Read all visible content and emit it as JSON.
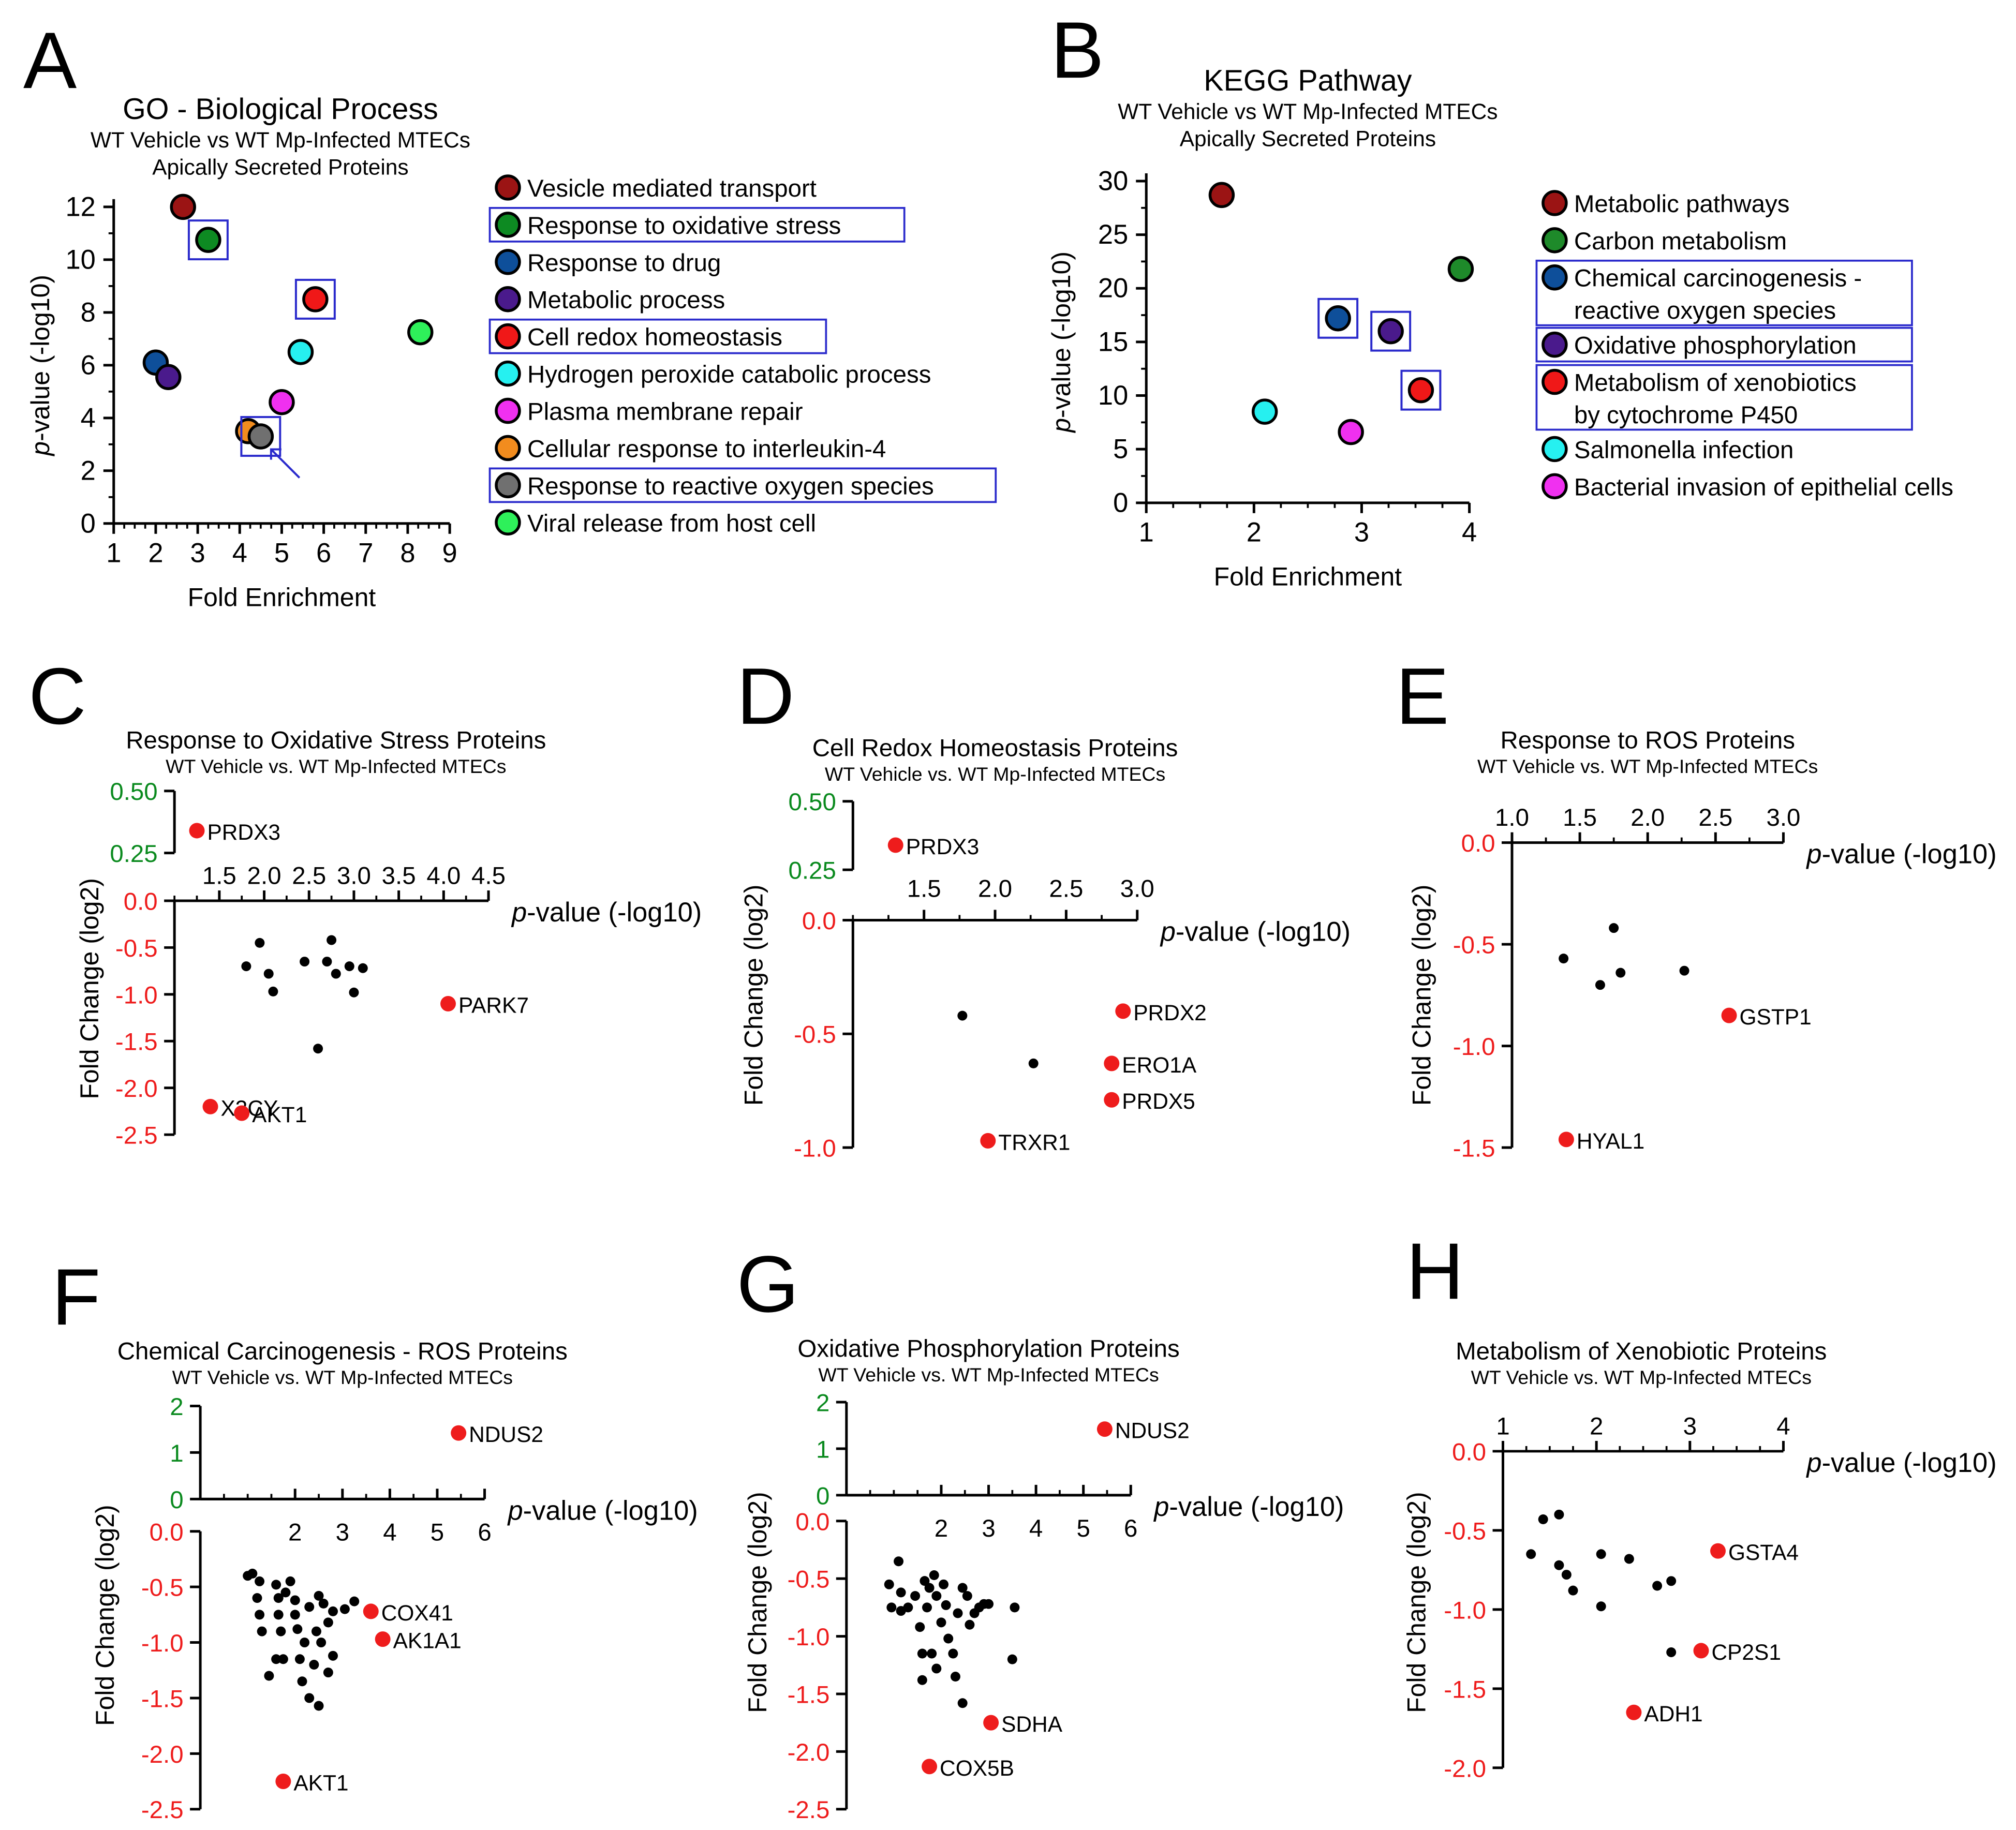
{
  "colors": {
    "vesicle": "#9b1414",
    "oxidative_stress": "#0d8a22",
    "drug": "#0e4f9a",
    "metabolic_process": "#4a1a8c",
    "redox": "#f01818",
    "h2o2": "#26f0f0",
    "membrane": "#f030f0",
    "il4": "#f28c1e",
    "ros": "#707070",
    "viral": "#2ef05a",
    "carbon": "#1e8a2a",
    "highlight_box": "#2b2bcc",
    "red_point": "#ee1c1c",
    "black_point": "#000000",
    "green_axis": "#0a8a1e",
    "red_axis": "#ee1c1c"
  },
  "chart_data": [
    {
      "id": "A",
      "type": "scatter",
      "panel_label": "A",
      "title": "GO - Biological Process",
      "subtitles": [
        "WT Vehicle vs WT Mp-Infected MTECs",
        "Apically Secreted Proteins"
      ],
      "xlabel": "Fold Enrichment",
      "ylabel_prefix": "p",
      "ylabel_suffix": "-value (-log10)",
      "xlim": [
        1,
        9
      ],
      "ylim": [
        0,
        12
      ],
      "xticks": [
        "1",
        "2",
        "3",
        "4",
        "5",
        "6",
        "7",
        "8",
        "9"
      ],
      "yticks": [
        "0",
        "2",
        "4",
        "6",
        "8",
        "10",
        "12"
      ],
      "arrow_target": "Response to reactive oxygen species",
      "series": [
        {
          "name": "Vesicle mediated transport",
          "color": "vesicle",
          "x": 2.65,
          "y": 12.0,
          "highlight": false
        },
        {
          "name": "Response to oxidative stress",
          "color": "oxidative_stress",
          "x": 3.25,
          "y": 10.75,
          "highlight": true
        },
        {
          "name": "Response to drug",
          "color": "drug",
          "x": 2.0,
          "y": 6.1,
          "highlight": false
        },
        {
          "name": "Metabolic process",
          "color": "metabolic_process",
          "x": 2.3,
          "y": 5.55,
          "highlight": false
        },
        {
          "name": "Cell redox homeostasis",
          "color": "redox",
          "x": 5.8,
          "y": 8.5,
          "highlight": true
        },
        {
          "name": "Hydrogen peroxide catabolic process",
          "color": "h2o2",
          "x": 5.45,
          "y": 6.5,
          "highlight": false
        },
        {
          "name": "Plasma membrane repair",
          "color": "membrane",
          "x": 5.0,
          "y": 4.6,
          "highlight": false
        },
        {
          "name": "Cellular response to interleukin-4",
          "color": "il4",
          "x": 4.2,
          "y": 3.5,
          "highlight": false
        },
        {
          "name": "Response to reactive oxygen species",
          "color": "ros",
          "x": 4.5,
          "y": 3.3,
          "highlight": true
        },
        {
          "name": "Viral release from host cell",
          "color": "viral",
          "x": 8.3,
          "y": 7.25,
          "highlight": false
        }
      ]
    },
    {
      "id": "B",
      "type": "scatter",
      "panel_label": "B",
      "title": "KEGG Pathway",
      "subtitles": [
        "WT Vehicle vs WT Mp-Infected MTECs",
        "Apically Secreted Proteins"
      ],
      "xlabel": "Fold Enrichment",
      "ylabel_prefix": "p",
      "ylabel_suffix": "-value (-log10)",
      "xlim": [
        1,
        4
      ],
      "ylim": [
        0,
        30
      ],
      "xticks": [
        "1",
        "2",
        "3",
        "4"
      ],
      "yticks": [
        "0",
        "5",
        "10",
        "15",
        "20",
        "25",
        "30"
      ],
      "series": [
        {
          "name": "Metabolic pathways",
          "color": "vesicle",
          "x": 1.7,
          "y": 28.7,
          "highlight": false
        },
        {
          "name": "Carbon metabolism",
          "color": "carbon",
          "x": 3.92,
          "y": 21.8,
          "highlight": false
        },
        {
          "name": "Chemical carcinogenesis - reactive oxygen species",
          "legend_lines": [
            "Chemical carcinogenesis -",
            "reactive oxygen species"
          ],
          "color": "drug",
          "x": 2.78,
          "y": 17.2,
          "highlight": true
        },
        {
          "name": "Oxidative phosphorylation",
          "color": "metabolic_process",
          "x": 3.27,
          "y": 16.0,
          "highlight": true
        },
        {
          "name": "Metabolism of xenobiotics by cytochrome P450",
          "legend_lines": [
            "Metabolism of xenobiotics",
            "by cytochrome P450"
          ],
          "color": "redox",
          "x": 3.55,
          "y": 10.5,
          "highlight": true
        },
        {
          "name": "Salmonella infection",
          "color": "h2o2",
          "x": 2.1,
          "y": 8.5,
          "highlight": false
        },
        {
          "name": "Bacterial invasion of epithelial cells",
          "color": "membrane",
          "x": 2.9,
          "y": 6.6,
          "highlight": false
        }
      ]
    },
    {
      "id": "C",
      "type": "scatter",
      "panel_label": "C",
      "title": "Response to Oxidative Stress Proteins",
      "subtitle": "WT Vehicle vs. WT Mp-Infected MTECs",
      "xlabel_prefix": "p",
      "xlabel_suffix": "-value (-log10)",
      "ylabel": "Fold Change (log2)",
      "xlim": [
        1.0,
        4.5
      ],
      "xticks": [
        1.5,
        2.0,
        2.5,
        3.0,
        3.5,
        4.0,
        4.5
      ],
      "xtick_labels": [
        "1.5",
        "2.0",
        "2.5",
        "3.0",
        "3.5",
        "4.0",
        "4.5"
      ],
      "ylim_neg": [
        -2.5,
        0
      ],
      "yticks_neg": [
        0,
        -0.5,
        -1.0,
        -1.5,
        -2.0,
        -2.5
      ],
      "ytick_labels_neg": [
        "0.0",
        "-0.5",
        "-1.0",
        "-1.5",
        "-2.0",
        "-2.5"
      ],
      "ylim_pos": [
        0.25,
        0.5
      ],
      "yticks_pos": [
        0.25,
        0.5
      ],
      "ytick_labels_pos": [
        "0.25",
        "0.50"
      ],
      "red_points": [
        {
          "label": "PRDX3",
          "x": 1.25,
          "y": 0.34
        },
        {
          "label": "PARK7",
          "x": 4.05,
          "y": -1.1
        },
        {
          "label": "X3CY",
          "x": 1.4,
          "y": -2.2
        },
        {
          "label": "AKT1",
          "x": 1.75,
          "y": -2.27
        }
      ],
      "black_points": [
        {
          "x": 1.8,
          "y": -0.7
        },
        {
          "x": 1.95,
          "y": -0.45
        },
        {
          "x": 2.05,
          "y": -0.78
        },
        {
          "x": 2.1,
          "y": -0.97
        },
        {
          "x": 2.45,
          "y": -0.65
        },
        {
          "x": 2.75,
          "y": -0.42
        },
        {
          "x": 2.7,
          "y": -0.65
        },
        {
          "x": 2.8,
          "y": -0.78
        },
        {
          "x": 2.95,
          "y": -0.7
        },
        {
          "x": 3.0,
          "y": -0.98
        },
        {
          "x": 3.1,
          "y": -0.72
        },
        {
          "x": 2.6,
          "y": -1.58
        }
      ]
    },
    {
      "id": "D",
      "type": "scatter",
      "panel_label": "D",
      "title": "Cell Redox Homeostasis Proteins",
      "subtitle": "WT Vehicle vs. WT Mp-Infected MTECs",
      "xlabel_prefix": "p",
      "xlabel_suffix": "-value (-log10)",
      "ylabel": "Fold Change (log2)",
      "xlim": [
        1.0,
        3.0
      ],
      "xticks": [
        1.5,
        2.0,
        2.5,
        3.0
      ],
      "xtick_labels": [
        "1.5",
        "2.0",
        "2.5",
        "3.0"
      ],
      "ylim_neg": [
        -1.0,
        0
      ],
      "yticks_neg": [
        0,
        -0.5,
        -1.0
      ],
      "ytick_labels_neg": [
        "0.0",
        "-0.5",
        "-1.0"
      ],
      "ylim_pos": [
        0.25,
        0.5
      ],
      "yticks_pos": [
        0.25,
        0.5
      ],
      "ytick_labels_pos": [
        "0.25",
        "0.50"
      ],
      "red_points": [
        {
          "label": "PRDX3",
          "x": 1.3,
          "y": 0.34
        },
        {
          "label": "PRDX2",
          "x": 2.9,
          "y": -0.4
        },
        {
          "label": "ERO1A",
          "x": 2.82,
          "y": -0.63
        },
        {
          "label": "PRDX5",
          "x": 2.82,
          "y": -0.79
        },
        {
          "label": "TRXR1",
          "x": 1.95,
          "y": -0.97
        }
      ],
      "black_points": [
        {
          "x": 1.77,
          "y": -0.42
        },
        {
          "x": 2.27,
          "y": -0.63
        }
      ]
    },
    {
      "id": "E",
      "type": "scatter",
      "panel_label": "E",
      "title": "Response to ROS Proteins",
      "subtitle": "WT Vehicle vs. WT Mp-Infected MTECs",
      "xlabel_prefix": "p",
      "xlabel_suffix": "-value (-log10)",
      "ylabel": "Fold Change (log2)",
      "xlim": [
        1.0,
        3.0
      ],
      "xticks": [
        1.0,
        1.5,
        2.0,
        2.5,
        3.0
      ],
      "xtick_labels": [
        "1.0",
        "1.5",
        "2.0",
        "2.5",
        "3.0"
      ],
      "ylim_neg": [
        -1.5,
        0
      ],
      "yticks_neg": [
        0,
        -0.5,
        -1.0,
        -1.5
      ],
      "ytick_labels_neg": [
        "0.0",
        "-0.5",
        "-1.0",
        "-1.5"
      ],
      "red_points": [
        {
          "label": "GSTP1",
          "x": 2.6,
          "y": -0.85
        },
        {
          "label": "HYAL1",
          "x": 1.4,
          "y": -1.46
        }
      ],
      "black_points": [
        {
          "x": 1.38,
          "y": -0.57
        },
        {
          "x": 1.65,
          "y": -0.7
        },
        {
          "x": 1.75,
          "y": -0.42
        },
        {
          "x": 1.8,
          "y": -0.64
        },
        {
          "x": 2.27,
          "y": -0.63
        }
      ]
    },
    {
      "id": "F",
      "type": "scatter",
      "panel_label": "F",
      "title": "Chemical Carcinogenesis - ROS Proteins",
      "subtitle": "WT Vehicle vs. WT Mp-Infected MTECs",
      "xlabel_prefix": "p",
      "xlabel_suffix": "-value (-log10)",
      "ylabel": "Fold Change (log2)",
      "xlim": [
        0,
        6
      ],
      "xticks": [
        2,
        3,
        4,
        5,
        6
      ],
      "xtick_labels": [
        "2",
        "3",
        "4",
        "5",
        "6"
      ],
      "ylim_neg": [
        -2.5,
        0
      ],
      "yticks_neg": [
        0,
        -0.5,
        -1.0,
        -1.5,
        -2.0,
        -2.5
      ],
      "ytick_labels_neg": [
        "0.0",
        "-0.5",
        "-1.0",
        "-1.5",
        "-2.0",
        "-2.5"
      ],
      "ylim_pos": [
        0,
        2
      ],
      "yticks_pos": [
        0,
        1,
        2
      ],
      "ytick_labels_pos": [
        "0",
        "1",
        "2"
      ],
      "red_points": [
        {
          "label": "NDUS2",
          "x": 5.45,
          "y": 1.42
        },
        {
          "label": "COX41",
          "x": 3.6,
          "y": -0.72
        },
        {
          "label": "AK1A1",
          "x": 3.85,
          "y": -0.97
        },
        {
          "label": "AKT1",
          "x": 1.75,
          "y": -2.25
        }
      ],
      "black_points": [
        {
          "x": 1.0,
          "y": -0.4
        },
        {
          "x": 1.1,
          "y": -0.38
        },
        {
          "x": 1.2,
          "y": -0.6
        },
        {
          "x": 1.25,
          "y": -0.45
        },
        {
          "x": 1.25,
          "y": -0.75
        },
        {
          "x": 1.3,
          "y": -0.9
        },
        {
          "x": 1.45,
          "y": -1.3
        },
        {
          "x": 1.6,
          "y": -0.48
        },
        {
          "x": 1.65,
          "y": -0.6
        },
        {
          "x": 1.65,
          "y": -0.75
        },
        {
          "x": 1.7,
          "y": -0.9
        },
        {
          "x": 1.6,
          "y": -1.15
        },
        {
          "x": 1.75,
          "y": -1.15
        },
        {
          "x": 1.8,
          "y": -0.55
        },
        {
          "x": 1.9,
          "y": -0.45
        },
        {
          "x": 2.0,
          "y": -0.62
        },
        {
          "x": 2.0,
          "y": -0.75
        },
        {
          "x": 2.05,
          "y": -0.88
        },
        {
          "x": 2.1,
          "y": -1.15
        },
        {
          "x": 2.15,
          "y": -1.35
        },
        {
          "x": 2.2,
          "y": -1.0
        },
        {
          "x": 2.3,
          "y": -0.68
        },
        {
          "x": 2.3,
          "y": -1.5
        },
        {
          "x": 2.4,
          "y": -1.2
        },
        {
          "x": 2.45,
          "y": -0.9
        },
        {
          "x": 2.5,
          "y": -0.58
        },
        {
          "x": 2.5,
          "y": -1.57
        },
        {
          "x": 2.55,
          "y": -1.0
        },
        {
          "x": 2.6,
          "y": -0.65
        },
        {
          "x": 2.7,
          "y": -0.82
        },
        {
          "x": 2.7,
          "y": -1.27
        },
        {
          "x": 2.8,
          "y": -1.12
        },
        {
          "x": 2.8,
          "y": -0.72
        },
        {
          "x": 3.05,
          "y": -0.7
        },
        {
          "x": 3.25,
          "y": -0.63
        }
      ]
    },
    {
      "id": "G",
      "type": "scatter",
      "panel_label": "G",
      "title": "Oxidative Phosphorylation Proteins",
      "subtitle": "WT Vehicle vs. WT Mp-Infected MTECs",
      "xlabel_prefix": "p",
      "xlabel_suffix": "-value (-log10)",
      "ylabel": "Fold Change (log2)",
      "xlim": [
        0,
        6
      ],
      "xticks": [
        2,
        3,
        4,
        5,
        6
      ],
      "xtick_labels": [
        "2",
        "3",
        "4",
        "5",
        "6"
      ],
      "ylim_neg": [
        -2.5,
        0
      ],
      "yticks_neg": [
        0,
        -0.5,
        -1.0,
        -1.5,
        -2.0,
        -2.5
      ],
      "ytick_labels_neg": [
        "0.0",
        "-0.5",
        "-1.0",
        "-1.5",
        "-2.0",
        "-2.5"
      ],
      "ylim_pos": [
        0,
        2
      ],
      "yticks_pos": [
        0,
        1,
        2
      ],
      "ytick_labels_pos": [
        "0",
        "1",
        "2"
      ],
      "red_points": [
        {
          "label": "NDUS2",
          "x": 5.45,
          "y": 1.42
        },
        {
          "label": "SDHA",
          "x": 3.05,
          "y": -1.75
        },
        {
          "label": "COX5B",
          "x": 1.75,
          "y": -2.13
        }
      ],
      "black_points": [
        {
          "x": 0.9,
          "y": -0.55
        },
        {
          "x": 0.95,
          "y": -0.75
        },
        {
          "x": 1.1,
          "y": -0.35
        },
        {
          "x": 1.15,
          "y": -0.62
        },
        {
          "x": 1.15,
          "y": -0.78
        },
        {
          "x": 1.3,
          "y": -0.75
        },
        {
          "x": 1.45,
          "y": -0.65
        },
        {
          "x": 1.55,
          "y": -0.92
        },
        {
          "x": 1.6,
          "y": -1.15
        },
        {
          "x": 1.6,
          "y": -1.38
        },
        {
          "x": 1.65,
          "y": -0.52
        },
        {
          "x": 1.7,
          "y": -0.75
        },
        {
          "x": 1.75,
          "y": -0.58
        },
        {
          "x": 1.8,
          "y": -1.15
        },
        {
          "x": 1.85,
          "y": -0.47
        },
        {
          "x": 1.9,
          "y": -0.65
        },
        {
          "x": 1.9,
          "y": -1.28
        },
        {
          "x": 2.0,
          "y": -0.88
        },
        {
          "x": 2.05,
          "y": -0.55
        },
        {
          "x": 2.1,
          "y": -0.73
        },
        {
          "x": 2.15,
          "y": -1.02
        },
        {
          "x": 2.25,
          "y": -1.15
        },
        {
          "x": 2.3,
          "y": -1.35
        },
        {
          "x": 2.35,
          "y": -0.8
        },
        {
          "x": 2.45,
          "y": -0.58
        },
        {
          "x": 2.45,
          "y": -1.58
        },
        {
          "x": 2.55,
          "y": -0.65
        },
        {
          "x": 2.6,
          "y": -0.9
        },
        {
          "x": 2.7,
          "y": -0.8
        },
        {
          "x": 2.8,
          "y": -0.75
        },
        {
          "x": 2.9,
          "y": -0.72
        },
        {
          "x": 3.0,
          "y": -0.72
        },
        {
          "x": 3.55,
          "y": -0.75
        },
        {
          "x": 3.5,
          "y": -1.2
        }
      ]
    },
    {
      "id": "H",
      "type": "scatter",
      "panel_label": "H",
      "title": "Metabolism of Xenobiotic Proteins",
      "subtitle": "WT Vehicle vs. WT Mp-Infected MTECs",
      "xlabel_prefix": "p",
      "xlabel_suffix": "-value (-log10)",
      "ylabel": "Fold Change (log2)",
      "xlim": [
        1,
        4
      ],
      "xticks": [
        1,
        2,
        3,
        4
      ],
      "xtick_labels": [
        "1",
        "2",
        "3",
        "4"
      ],
      "ylim_neg": [
        -2.0,
        0
      ],
      "yticks_neg": [
        0,
        -0.5,
        -1.0,
        -1.5,
        -2.0
      ],
      "ytick_labels_neg": [
        "0.0",
        "-0.5",
        "-1.0",
        "-1.5",
        "-2.0"
      ],
      "red_points": [
        {
          "label": "GSTA4",
          "x": 3.3,
          "y": -0.63
        },
        {
          "label": "CP2S1",
          "x": 3.12,
          "y": -1.26
        },
        {
          "label": "ADH1",
          "x": 2.4,
          "y": -1.65
        }
      ],
      "black_points": [
        {
          "x": 1.3,
          "y": -0.65
        },
        {
          "x": 1.43,
          "y": -0.43
        },
        {
          "x": 1.6,
          "y": -0.4
        },
        {
          "x": 1.6,
          "y": -0.72
        },
        {
          "x": 1.68,
          "y": -0.78
        },
        {
          "x": 1.75,
          "y": -0.88
        },
        {
          "x": 2.05,
          "y": -0.65
        },
        {
          "x": 2.05,
          "y": -0.98
        },
        {
          "x": 2.35,
          "y": -0.68
        },
        {
          "x": 2.65,
          "y": -0.85
        },
        {
          "x": 2.8,
          "y": -0.82
        },
        {
          "x": 2.8,
          "y": -1.27
        }
      ]
    }
  ]
}
